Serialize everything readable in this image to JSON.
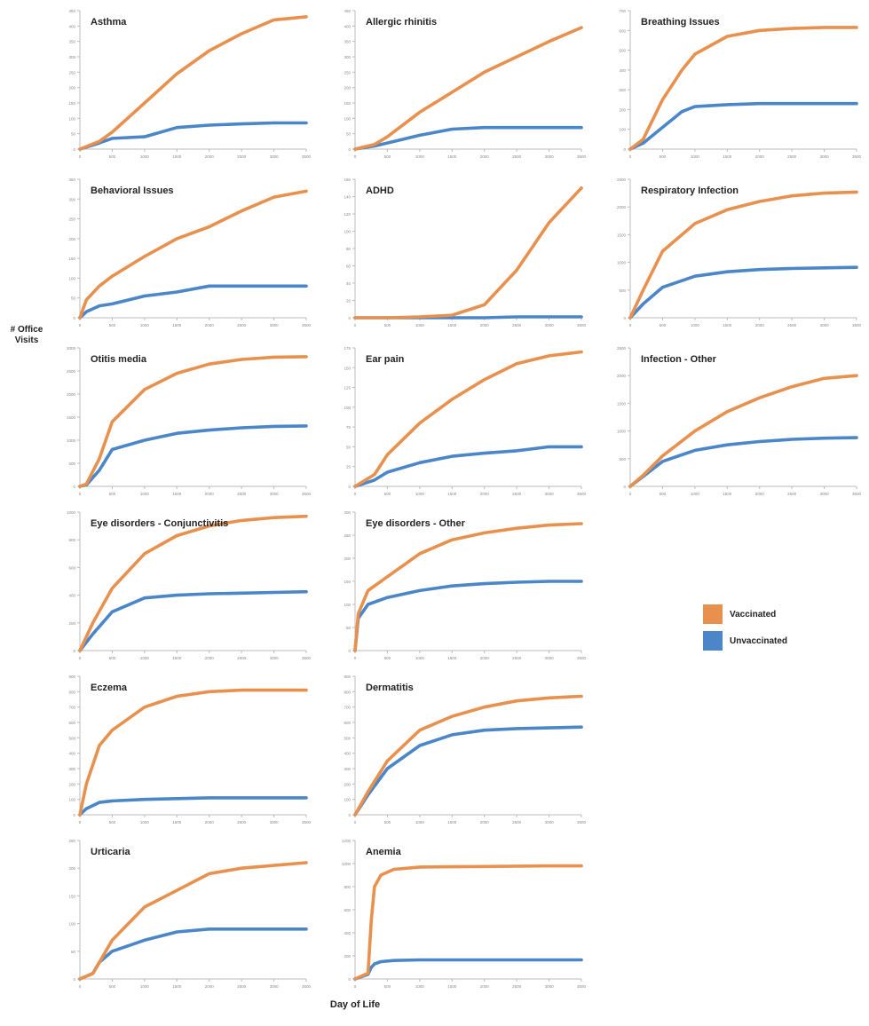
{
  "figure": {
    "ylabel": "# Office Visits",
    "xlabel": "Day of Life",
    "legend": [
      {
        "label": "Vaccinated",
        "color": "#e8914e"
      },
      {
        "label": "Unvaccinated",
        "color": "#4a86c8"
      }
    ]
  },
  "chart_data": [
    {
      "type": "line",
      "title": "Asthma",
      "xlim": [
        0,
        3500
      ],
      "ylim": [
        0,
        450
      ],
      "x_ticks": [
        0,
        500,
        1000,
        1500,
        2000,
        2500,
        3000,
        3500
      ],
      "y_ticks": [
        0,
        50,
        100,
        150,
        200,
        250,
        300,
        350,
        400,
        450
      ],
      "x": [
        0,
        300,
        500,
        1000,
        1500,
        2000,
        2500,
        3000,
        3500
      ],
      "series": [
        {
          "name": "Vaccinated",
          "values": [
            0,
            25,
            55,
            150,
            245,
            320,
            375,
            420,
            430
          ]
        },
        {
          "name": "Unvaccinated",
          "values": [
            0,
            20,
            35,
            40,
            70,
            78,
            82,
            85,
            85
          ]
        }
      ]
    },
    {
      "type": "line",
      "title": "Allergic rhinitis",
      "xlim": [
        0,
        3500
      ],
      "ylim": [
        0,
        450
      ],
      "x_ticks": [
        0,
        500,
        1000,
        1500,
        2000,
        2500,
        3000,
        3500
      ],
      "y_ticks": [
        0,
        50,
        100,
        150,
        200,
        250,
        300,
        350,
        400,
        450
      ],
      "x": [
        0,
        300,
        500,
        1000,
        1500,
        2000,
        2500,
        3000,
        3500
      ],
      "series": [
        {
          "name": "Vaccinated",
          "values": [
            0,
            15,
            40,
            120,
            185,
            250,
            300,
            350,
            395
          ]
        },
        {
          "name": "Unvaccinated",
          "values": [
            0,
            10,
            20,
            45,
            65,
            70,
            70,
            70,
            70
          ]
        }
      ]
    },
    {
      "type": "line",
      "title": "Breathing Issues",
      "xlim": [
        0,
        3500
      ],
      "ylim": [
        0,
        700
      ],
      "x_ticks": [
        0,
        500,
        1000,
        1500,
        2000,
        2500,
        3000,
        3500
      ],
      "y_ticks": [
        0,
        100,
        200,
        300,
        400,
        500,
        600,
        700
      ],
      "x": [
        0,
        200,
        500,
        800,
        1000,
        1500,
        2000,
        2500,
        3000,
        3500
      ],
      "series": [
        {
          "name": "Vaccinated",
          "values": [
            0,
            50,
            250,
            400,
            480,
            570,
            600,
            610,
            615,
            615
          ]
        },
        {
          "name": "Unvaccinated",
          "values": [
            0,
            30,
            110,
            190,
            215,
            225,
            230,
            230,
            230,
            230
          ]
        }
      ]
    },
    {
      "type": "line",
      "title": "Behavioral Issues",
      "xlim": [
        0,
        3500
      ],
      "ylim": [
        0,
        350
      ],
      "x_ticks": [
        0,
        500,
        1000,
        1500,
        2000,
        2500,
        3000,
        3500
      ],
      "y_ticks": [
        0,
        50,
        100,
        150,
        200,
        250,
        300,
        350
      ],
      "x": [
        0,
        100,
        300,
        500,
        1000,
        1500,
        2000,
        2500,
        3000,
        3500
      ],
      "series": [
        {
          "name": "Vaccinated",
          "values": [
            0,
            45,
            80,
            105,
            155,
            200,
            230,
            270,
            305,
            320
          ]
        },
        {
          "name": "Unvaccinated",
          "values": [
            0,
            15,
            30,
            35,
            55,
            65,
            80,
            80,
            80,
            80
          ]
        }
      ]
    },
    {
      "type": "line",
      "title": "ADHD",
      "xlim": [
        0,
        3500
      ],
      "ylim": [
        0,
        160
      ],
      "x_ticks": [
        0,
        500,
        1000,
        1500,
        2000,
        2500,
        3000,
        3500
      ],
      "y_ticks": [
        0,
        20,
        40,
        60,
        80,
        100,
        120,
        140,
        160
      ],
      "x": [
        0,
        500,
        1000,
        1500,
        2000,
        2500,
        3000,
        3500
      ],
      "series": [
        {
          "name": "Vaccinated",
          "values": [
            0,
            0,
            1,
            3,
            15,
            55,
            110,
            150
          ]
        },
        {
          "name": "Unvaccinated",
          "values": [
            0,
            0,
            0,
            0,
            0,
            1,
            1,
            1
          ]
        }
      ]
    },
    {
      "type": "line",
      "title": "Respiratory Infection",
      "xlim": [
        0,
        3500
      ],
      "ylim": [
        0,
        2500
      ],
      "x_ticks": [
        0,
        500,
        1000,
        1500,
        2000,
        2500,
        3000,
        3500
      ],
      "y_ticks": [
        0,
        500,
        1000,
        1500,
        2000,
        2500
      ],
      "x": [
        0,
        200,
        500,
        1000,
        1500,
        2000,
        2500,
        3000,
        3500
      ],
      "series": [
        {
          "name": "Vaccinated",
          "values": [
            0,
            500,
            1200,
            1700,
            1950,
            2100,
            2200,
            2250,
            2270
          ]
        },
        {
          "name": "Unvaccinated",
          "values": [
            0,
            250,
            550,
            750,
            830,
            870,
            890,
            900,
            910
          ]
        }
      ]
    },
    {
      "type": "line",
      "title": "Otitis media",
      "xlim": [
        0,
        3500
      ],
      "ylim": [
        0,
        3000
      ],
      "x_ticks": [
        0,
        500,
        1000,
        1500,
        2000,
        2500,
        3000,
        3500
      ],
      "y_ticks": [
        0,
        500,
        1000,
        1500,
        2000,
        2500,
        3000
      ],
      "x": [
        0,
        100,
        300,
        500,
        1000,
        1500,
        2000,
        2500,
        3000,
        3500
      ],
      "series": [
        {
          "name": "Vaccinated",
          "values": [
            0,
            50,
            600,
            1400,
            2100,
            2450,
            2650,
            2750,
            2800,
            2810
          ]
        },
        {
          "name": "Unvaccinated",
          "values": [
            0,
            30,
            350,
            800,
            1000,
            1150,
            1220,
            1270,
            1300,
            1310
          ]
        }
      ]
    },
    {
      "type": "line",
      "title": "Ear pain",
      "xlim": [
        0,
        3500
      ],
      "ylim": [
        0,
        175
      ],
      "x_ticks": [
        0,
        500,
        1000,
        1500,
        2000,
        2500,
        3000,
        3500
      ],
      "y_ticks": [
        0,
        25,
        50,
        75,
        100,
        125,
        150,
        175
      ],
      "x": [
        0,
        300,
        500,
        1000,
        1500,
        2000,
        2500,
        3000,
        3500
      ],
      "series": [
        {
          "name": "Vaccinated",
          "values": [
            0,
            15,
            40,
            80,
            110,
            135,
            155,
            165,
            170
          ]
        },
        {
          "name": "Unvaccinated",
          "values": [
            0,
            8,
            18,
            30,
            38,
            42,
            45,
            50,
            50
          ]
        }
      ]
    },
    {
      "type": "line",
      "title": "Infection - Other",
      "xlim": [
        0,
        3500
      ],
      "ylim": [
        0,
        2500
      ],
      "x_ticks": [
        0,
        500,
        1000,
        1500,
        2000,
        2500,
        3000,
        3500
      ],
      "y_ticks": [
        0,
        500,
        1000,
        1500,
        2000,
        2500
      ],
      "x": [
        0,
        200,
        500,
        1000,
        1500,
        2000,
        2500,
        3000,
        3500
      ],
      "series": [
        {
          "name": "Vaccinated",
          "values": [
            0,
            200,
            550,
            1000,
            1350,
            1600,
            1800,
            1950,
            2000
          ]
        },
        {
          "name": "Unvaccinated",
          "values": [
            0,
            180,
            450,
            650,
            750,
            810,
            850,
            870,
            880
          ]
        }
      ]
    },
    {
      "type": "line",
      "title": "Eye disorders - Conjunctivitis",
      "xlim": [
        0,
        3500
      ],
      "ylim": [
        0,
        1000
      ],
      "x_ticks": [
        0,
        500,
        1000,
        1500,
        2000,
        2500,
        3000,
        3500
      ],
      "y_ticks": [
        0,
        200,
        400,
        600,
        800,
        1000
      ],
      "x": [
        0,
        200,
        500,
        1000,
        1500,
        2000,
        2500,
        3000,
        3500
      ],
      "series": [
        {
          "name": "Vaccinated",
          "values": [
            0,
            200,
            450,
            700,
            830,
            900,
            940,
            960,
            970
          ]
        },
        {
          "name": "Unvaccinated",
          "values": [
            0,
            120,
            280,
            380,
            400,
            410,
            415,
            420,
            425
          ]
        }
      ]
    },
    {
      "type": "line",
      "title": "Eye disorders - Other",
      "xlim": [
        0,
        3500
      ],
      "ylim": [
        0,
        300
      ],
      "x_ticks": [
        0,
        500,
        1000,
        1500,
        2000,
        2500,
        3000,
        3500
      ],
      "y_ticks": [
        0,
        50,
        100,
        150,
        200,
        250,
        300
      ],
      "x": [
        0,
        50,
        200,
        500,
        1000,
        1500,
        2000,
        2500,
        3000,
        3500
      ],
      "series": [
        {
          "name": "Vaccinated",
          "values": [
            0,
            80,
            130,
            160,
            210,
            240,
            255,
            265,
            272,
            275
          ]
        },
        {
          "name": "Unvaccinated",
          "values": [
            0,
            70,
            100,
            115,
            130,
            140,
            145,
            148,
            150,
            150
          ]
        }
      ]
    },
    {
      "type": "line",
      "title": "Eczema",
      "xlim": [
        0,
        3500
      ],
      "ylim": [
        0,
        900
      ],
      "x_ticks": [
        0,
        500,
        1000,
        1500,
        2000,
        2500,
        3000,
        3500
      ],
      "y_ticks": [
        0,
        100,
        200,
        300,
        400,
        500,
        600,
        700,
        800,
        900
      ],
      "x": [
        0,
        100,
        300,
        500,
        1000,
        1500,
        2000,
        2500,
        3000,
        3500
      ],
      "series": [
        {
          "name": "Vaccinated",
          "values": [
            0,
            200,
            450,
            550,
            700,
            770,
            800,
            810,
            810,
            810
          ]
        },
        {
          "name": "Unvaccinated",
          "values": [
            0,
            40,
            80,
            90,
            100,
            105,
            110,
            110,
            110,
            110
          ]
        }
      ]
    },
    {
      "type": "line",
      "title": "Dermatitis",
      "xlim": [
        0,
        3500
      ],
      "ylim": [
        0,
        900
      ],
      "x_ticks": [
        0,
        500,
        1000,
        1500,
        2000,
        2500,
        3000,
        3500
      ],
      "y_ticks": [
        0,
        100,
        200,
        300,
        400,
        500,
        600,
        700,
        800,
        900
      ],
      "x": [
        0,
        200,
        500,
        1000,
        1500,
        2000,
        2500,
        3000,
        3500
      ],
      "series": [
        {
          "name": "Vaccinated",
          "values": [
            0,
            150,
            350,
            550,
            640,
            700,
            740,
            760,
            770
          ]
        },
        {
          "name": "Unvaccinated",
          "values": [
            0,
            130,
            300,
            450,
            520,
            550,
            560,
            565,
            570
          ]
        }
      ]
    },
    {
      "type": "line",
      "title": "Urticaria",
      "xlim": [
        0,
        3500
      ],
      "ylim": [
        0,
        250
      ],
      "x_ticks": [
        0,
        500,
        1000,
        1500,
        2000,
        2500,
        3000,
        3500
      ],
      "y_ticks": [
        0,
        50,
        100,
        150,
        200,
        250
      ],
      "x": [
        0,
        200,
        300,
        500,
        1000,
        1500,
        2000,
        2500,
        3000,
        3500
      ],
      "series": [
        {
          "name": "Vaccinated",
          "values": [
            0,
            10,
            30,
            70,
            130,
            160,
            190,
            200,
            205,
            210
          ]
        },
        {
          "name": "Unvaccinated",
          "values": [
            0,
            10,
            30,
            50,
            70,
            85,
            90,
            90,
            90,
            90
          ]
        }
      ]
    },
    {
      "type": "line",
      "title": "Anemia",
      "xlim": [
        0,
        3500
      ],
      "ylim": [
        0,
        1200
      ],
      "x_ticks": [
        0,
        500,
        1000,
        1500,
        2000,
        2500,
        3000,
        3500
      ],
      "y_ticks": [
        0,
        200,
        400,
        600,
        800,
        1000,
        1200
      ],
      "x": [
        0,
        200,
        250,
        300,
        400,
        600,
        1000,
        2000,
        3000,
        3500
      ],
      "series": [
        {
          "name": "Vaccinated",
          "values": [
            0,
            50,
            500,
            800,
            900,
            950,
            970,
            975,
            980,
            980
          ]
        },
        {
          "name": "Unvaccinated",
          "values": [
            0,
            40,
            100,
            130,
            150,
            160,
            165,
            165,
            165,
            165
          ]
        }
      ]
    }
  ]
}
